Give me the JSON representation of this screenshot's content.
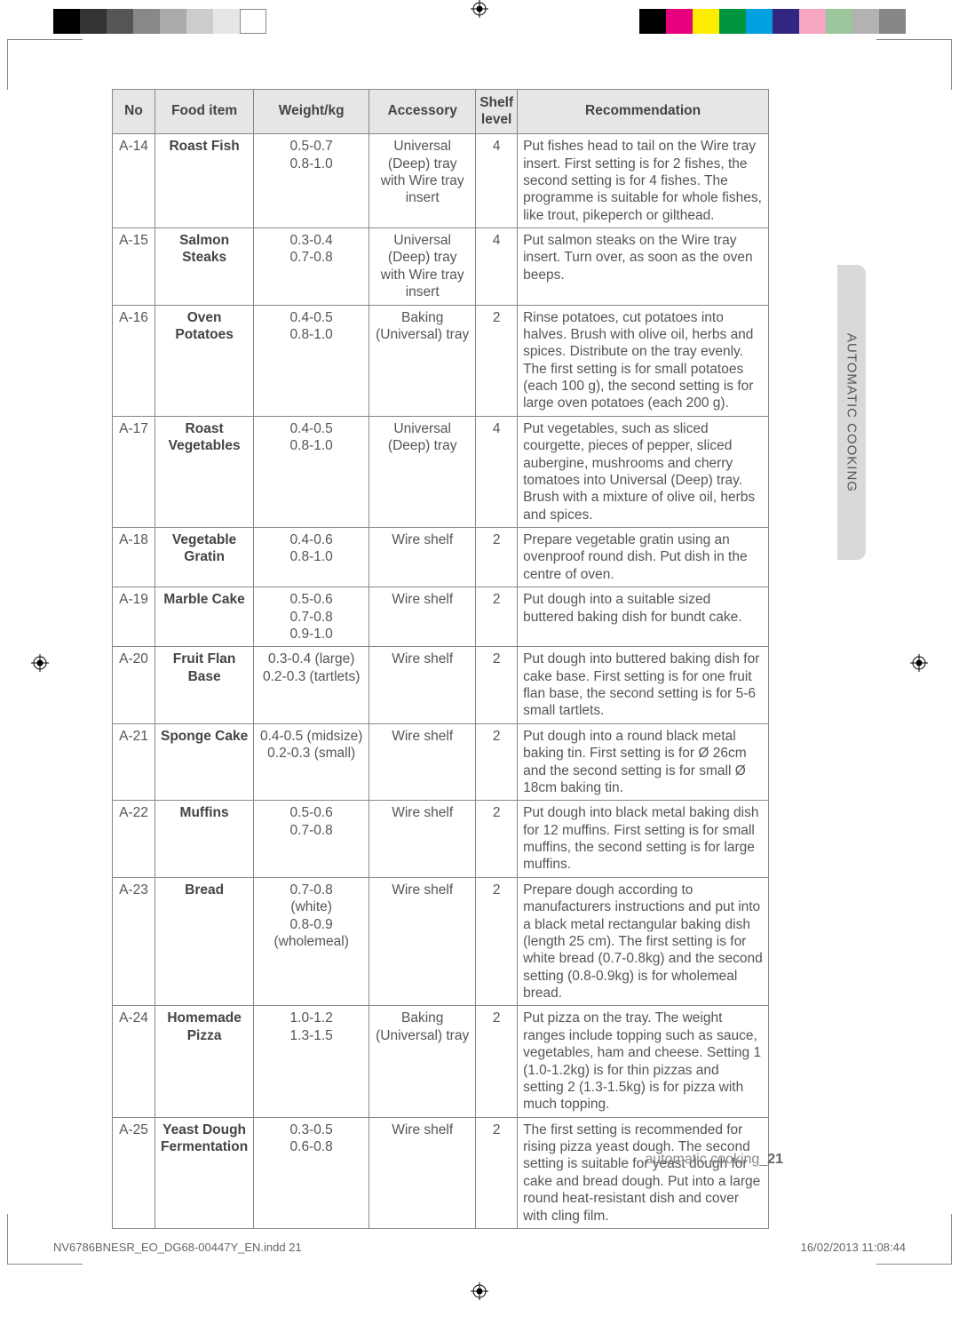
{
  "printmarks": {
    "top_left_colors": [
      "#000000",
      "#333333",
      "#555555",
      "#888888",
      "#aaaaaa",
      "#cccccc",
      "#e6e6e6",
      "#ffffff"
    ],
    "top_right_colors": [
      "#000000",
      "#e6007e",
      "#ffed00",
      "#009640",
      "#00a0e1",
      "#312783",
      "#f7a6c1",
      "#9cc69b",
      "#b2b2b2",
      "#878787"
    ]
  },
  "table": {
    "headers": {
      "no": "No",
      "food": "Food item",
      "weight": "Weight/kg",
      "accessory": "Accessory",
      "shelf": "Shelf level",
      "recommendation": "Recommendation"
    },
    "rows": [
      {
        "no": "A-14",
        "food": "Roast Fish",
        "weight": "0.5-0.7\n0.8-1.0",
        "accessory": "Universal (Deep) tray with Wire tray insert",
        "shelf": "4",
        "rec": "Put fishes head to tail on the Wire tray insert. First setting is for 2 fishes, the second setting is for 4 fishes. The programme is suitable for whole fishes, like trout, pikeperch or gilthead."
      },
      {
        "no": "A-15",
        "food": "Salmon Steaks",
        "weight": "0.3-0.4\n0.7-0.8",
        "accessory": "Universal (Deep) tray with Wire tray insert",
        "shelf": "4",
        "rec": "Put salmon steaks on the Wire tray insert. Turn over, as soon as the oven beeps."
      },
      {
        "no": "A-16",
        "food": "Oven Potatoes",
        "weight": "0.4-0.5\n0.8-1.0",
        "accessory": "Baking (Universal) tray",
        "shelf": "2",
        "rec": "Rinse potatoes, cut potatoes into halves. Brush with olive oil, herbs and spices. Distribute on the tray evenly. The first setting is for small potatoes (each 100 g), the second setting is for large oven potatoes (each 200 g)."
      },
      {
        "no": "A-17",
        "food": "Roast Vegetables",
        "weight": "0.4-0.5\n0.8-1.0",
        "accessory": "Universal (Deep) tray",
        "shelf": "4",
        "rec": "Put vegetables, such as sliced courgette, pieces of pepper, sliced aubergine, mushrooms and cherry tomatoes into Universal (Deep) tray. Brush with a mixture of olive oil, herbs and spices."
      },
      {
        "no": "A-18",
        "food": "Vegetable Gratin",
        "weight": "0.4-0.6\n0.8-1.0",
        "accessory": "Wire shelf",
        "shelf": "2",
        "rec": "Prepare vegetable gratin using an ovenproof round dish. Put dish in the centre of oven."
      },
      {
        "no": "A-19",
        "food": "Marble Cake",
        "weight": "0.5-0.6\n0.7-0.8\n0.9-1.0",
        "accessory": "Wire shelf",
        "shelf": "2",
        "rec": "Put dough into a suitable sized buttered baking dish for bundt cake."
      },
      {
        "no": "A-20",
        "food": "Fruit Flan Base",
        "weight": "0.3-0.4 (large)\n0.2-0.3 (tartlets)",
        "accessory": "Wire shelf",
        "shelf": "2",
        "rec": "Put dough into buttered baking dish for cake base. First setting is for one fruit flan base, the second setting is for 5-6 small tartlets."
      },
      {
        "no": "A-21",
        "food": "Sponge Cake",
        "weight": "0.4-0.5 (midsize)\n0.2-0.3 (small)",
        "accessory": "Wire shelf",
        "shelf": "2",
        "rec": "Put dough into a round black metal baking tin. First setting is for Ø 26cm and the second setting is for small Ø 18cm baking tin."
      },
      {
        "no": "A-22",
        "food": "Muffins",
        "weight": "0.5-0.6\n0.7-0.8",
        "accessory": "Wire shelf",
        "shelf": "2",
        "rec": "Put dough into black metal baking dish for 12 muffins. First setting is for small muffins, the second setting is for large muffins."
      },
      {
        "no": "A-23",
        "food": "Bread",
        "weight": "0.7-0.8\n(white)\n0.8-0.9\n(wholemeal)",
        "accessory": "Wire shelf",
        "shelf": "2",
        "rec": "Prepare dough according to manufacturers instructions and put into a black metal rectangular baking dish (length 25 cm). The first setting is for white bread (0.7-0.8kg) and the second setting (0.8-0.9kg) is for wholemeal bread."
      },
      {
        "no": "A-24",
        "food": "Homemade Pizza",
        "weight": "1.0-1.2\n1.3-1.5",
        "accessory": "Baking (Universal) tray",
        "shelf": "2",
        "rec": "Put pizza on the tray. The weight ranges include topping such as sauce, vegetables, ham and cheese. Setting 1 (1.0-1.2kg) is for thin pizzas and setting 2 (1.3-1.5kg) is for pizza with much topping."
      },
      {
        "no": "A-25",
        "food": "Yeast Dough Fermentation",
        "weight": "0.3-0.5\n0.6-0.8",
        "accessory": "Wire shelf",
        "shelf": "2",
        "rec": "The first setting is recommended for rising pizza yeast dough. The second setting is suitable for yeast dough for cake and bread dough. Put into a large round heat-resistant dish and cover with cling film."
      }
    ]
  },
  "side_tab": "AUTOMATIC COOKING",
  "footer_label_prefix": "automatic cooking_",
  "footer_label_page": "21",
  "indd_file": "NV6786BNESR_EO_DG68-00447Y_EN.indd   21",
  "indd_date": "16/02/2013   11:08:44"
}
